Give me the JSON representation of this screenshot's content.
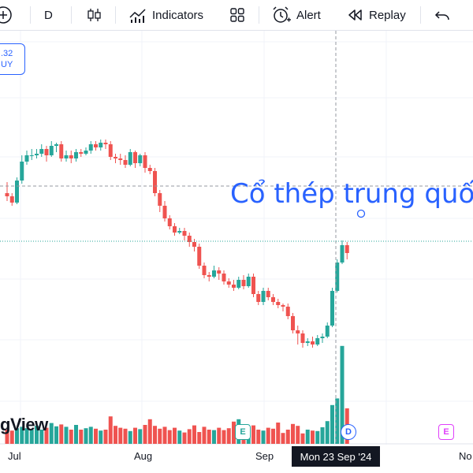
{
  "toolbar": {
    "interval": "D",
    "indicators_label": "Indicators",
    "alert_label": "Alert",
    "replay_label": "Replay"
  },
  "price_label": {
    "value": ".32",
    "side": "UY"
  },
  "watermark": "gView",
  "annotation": "Cổ thép trung quố",
  "crosshair_date": "Mon 23 Sep '24",
  "x_axis": {
    "labels": [
      "Jul",
      "Aug",
      "Sep",
      "No"
    ]
  },
  "events": {
    "e1": "E",
    "d1": "D",
    "e2": "E"
  },
  "colors": {
    "up": "#26a69a",
    "down": "#ef5350",
    "accent": "#2962ff",
    "event_e": "#26a69a",
    "event_e2": "#e040fb"
  },
  "chart_data": {
    "type": "candlestick",
    "candles": [
      [
        0.2,
        0.0,
        0.9,
        -0.3
      ],
      [
        0.0,
        -0.4,
        0.2,
        -0.6
      ],
      [
        -0.4,
        1.0,
        1.2,
        -0.5
      ],
      [
        1.0,
        2.2,
        2.6,
        0.8
      ],
      [
        2.2,
        2.6,
        2.9,
        2.0
      ],
      [
        2.6,
        2.6,
        3.0,
        2.3
      ],
      [
        2.6,
        2.7,
        3.0,
        2.4
      ],
      [
        2.7,
        3.0,
        3.3,
        2.5
      ],
      [
        3.0,
        2.6,
        3.2,
        2.2
      ],
      [
        2.6,
        3.2,
        3.5,
        2.5
      ],
      [
        3.2,
        3.3,
        3.4,
        2.8
      ],
      [
        3.3,
        2.4,
        3.5,
        2.2
      ],
      [
        2.4,
        2.6,
        2.9,
        2.2
      ],
      [
        2.6,
        2.4,
        2.9,
        2.1
      ],
      [
        2.4,
        2.8,
        3.0,
        2.2
      ],
      [
        2.8,
        2.7,
        3.0,
        2.5
      ],
      [
        2.7,
        2.9,
        3.1,
        2.6
      ],
      [
        2.9,
        3.3,
        3.5,
        2.7
      ],
      [
        3.3,
        3.1,
        3.5,
        2.9
      ],
      [
        3.1,
        3.4,
        3.6,
        2.9
      ],
      [
        3.4,
        3.3,
        3.6,
        3.0
      ],
      [
        3.3,
        2.5,
        3.5,
        2.3
      ],
      [
        2.5,
        2.4,
        2.7,
        2.1
      ],
      [
        2.4,
        2.3,
        2.7,
        2.0
      ],
      [
        2.3,
        2.0,
        2.6,
        1.8
      ],
      [
        2.0,
        2.8,
        3.0,
        1.9
      ],
      [
        2.8,
        2.1,
        2.9,
        1.8
      ],
      [
        2.1,
        2.6,
        2.7,
        1.9
      ],
      [
        2.6,
        1.8,
        2.8,
        1.5
      ],
      [
        1.8,
        1.6,
        2.0,
        1.4
      ],
      [
        1.6,
        0.2,
        1.8,
        0.0
      ],
      [
        0.2,
        -0.6,
        0.4,
        -1.0
      ],
      [
        -0.6,
        -1.4,
        -0.3,
        -1.6
      ],
      [
        -1.4,
        -1.9,
        -1.2,
        -2.1
      ],
      [
        -1.9,
        -2.3,
        -1.7,
        -2.5
      ],
      [
        -2.3,
        -2.2,
        -2.0,
        -2.4
      ],
      [
        -2.2,
        -2.5,
        -2.0,
        -2.8
      ],
      [
        -2.5,
        -2.9,
        -2.3,
        -3.2
      ],
      [
        -2.9,
        -3.2,
        -2.7,
        -3.5
      ],
      [
        -3.2,
        -4.4,
        -3.0,
        -4.6
      ],
      [
        -4.4,
        -5.0,
        -4.2,
        -5.2
      ],
      [
        -5.0,
        -5.1,
        -4.8,
        -5.4
      ],
      [
        -5.1,
        -4.7,
        -4.4,
        -5.2
      ],
      [
        -4.7,
        -4.9,
        -4.5,
        -5.3
      ],
      [
        -4.9,
        -5.4,
        -4.7,
        -5.6
      ],
      [
        -5.4,
        -5.6,
        -5.2,
        -5.8
      ],
      [
        -5.6,
        -5.8,
        -5.3,
        -6.0
      ],
      [
        -5.8,
        -5.3,
        -5.1,
        -5.9
      ],
      [
        -5.3,
        -5.7,
        -5.0,
        -5.9
      ],
      [
        -5.7,
        -5.1,
        -4.9,
        -5.8
      ],
      [
        -5.1,
        -6.2,
        -4.9,
        -6.4
      ],
      [
        -6.2,
        -6.7,
        -6.0,
        -6.9
      ],
      [
        -6.7,
        -6.0,
        -5.8,
        -6.9
      ],
      [
        -6.0,
        -6.4,
        -5.8,
        -6.6
      ],
      [
        -6.4,
        -6.7,
        -6.2,
        -6.9
      ],
      [
        -6.7,
        -6.9,
        -6.5,
        -7.1
      ],
      [
        -6.9,
        -7.0,
        -6.8,
        -7.3
      ],
      [
        -7.0,
        -7.6,
        -6.8,
        -7.8
      ],
      [
        -7.6,
        -8.5,
        -7.4,
        -8.7
      ],
      [
        -8.5,
        -8.7,
        -8.2,
        -9.4
      ],
      [
        -8.7,
        -9.3,
        -8.5,
        -9.6
      ],
      [
        -9.3,
        -9.2,
        -9.0,
        -9.5
      ],
      [
        -9.2,
        -9.4,
        -8.9,
        -9.6
      ],
      [
        -9.4,
        -9.0,
        -8.8,
        -9.5
      ],
      [
        -9.0,
        -8.9,
        -8.7,
        -9.3
      ],
      [
        -8.9,
        -8.2,
        -8.0,
        -9.0
      ],
      [
        -8.2,
        -6.0,
        -5.8,
        -8.3
      ],
      [
        -6.0,
        -4.2,
        -4.0,
        -6.1
      ],
      [
        -4.2,
        -3.1,
        -2.8,
        -4.3
      ],
      [
        -3.1,
        -3.6,
        -2.9,
        -4.0
      ]
    ],
    "volumes": [
      0.3,
      0.28,
      0.33,
      0.36,
      0.33,
      0.3,
      0.38,
      0.3,
      0.34,
      0.44,
      0.37,
      0.41,
      0.36,
      0.3,
      0.4,
      0.3,
      0.33,
      0.36,
      0.32,
      0.28,
      0.3,
      0.58,
      0.38,
      0.34,
      0.32,
      0.27,
      0.34,
      0.31,
      0.4,
      0.52,
      0.38,
      0.32,
      0.36,
      0.29,
      0.34,
      0.28,
      0.24,
      0.31,
      0.39,
      0.25,
      0.36,
      0.3,
      0.29,
      0.34,
      0.29,
      0.33,
      0.47,
      0.52,
      0.38,
      0.32,
      0.39,
      0.3,
      0.28,
      0.34,
      0.32,
      0.45,
      0.23,
      0.3,
      0.42,
      0.38,
      0.22,
      0.3,
      0.28,
      0.27,
      0.35,
      0.48,
      0.82,
      0.96,
      2.07,
      0.75
    ]
  }
}
